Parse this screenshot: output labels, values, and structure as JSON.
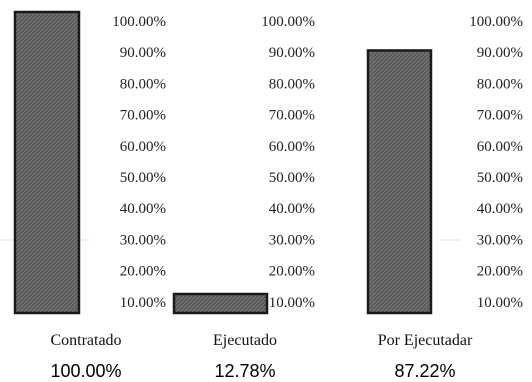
{
  "chart_data": [
    {
      "type": "bar",
      "categories": [
        "Contratado"
      ],
      "values": [
        100.0
      ],
      "value_label": "100.00%",
      "yticks": [
        "10.00%",
        "20.00%",
        "30.00%",
        "40.00%",
        "50.00%",
        "60.00%",
        "70.00%",
        "80.00%",
        "90.00%",
        "100.00%"
      ],
      "ylim": [
        0,
        100
      ],
      "bar_color": "#5a5a5a",
      "grid": false
    },
    {
      "type": "bar",
      "categories": [
        "Ejecutado"
      ],
      "values": [
        12.78
      ],
      "value_label": "12.78%",
      "yticks": [
        "10.00%",
        "20.00%",
        "30.00%",
        "40.00%",
        "50.00%",
        "60.00%",
        "70.00%",
        "80.00%",
        "90.00%",
        "100.00%"
      ],
      "ylim": [
        0,
        100
      ],
      "bar_color": "#5a5a5a",
      "grid": false
    },
    {
      "type": "bar",
      "categories": [
        "Por Ejecutadar"
      ],
      "values": [
        87.22
      ],
      "value_label": "87.22%",
      "yticks": [
        "10.00%",
        "20.00%",
        "30.00%",
        "40.00%",
        "50.00%",
        "60.00%",
        "70.00%",
        "80.00%",
        "90.00%",
        "100.00%"
      ],
      "ylim": [
        0,
        100
      ],
      "bar_color": "#5a5a5a",
      "grid": false
    }
  ]
}
